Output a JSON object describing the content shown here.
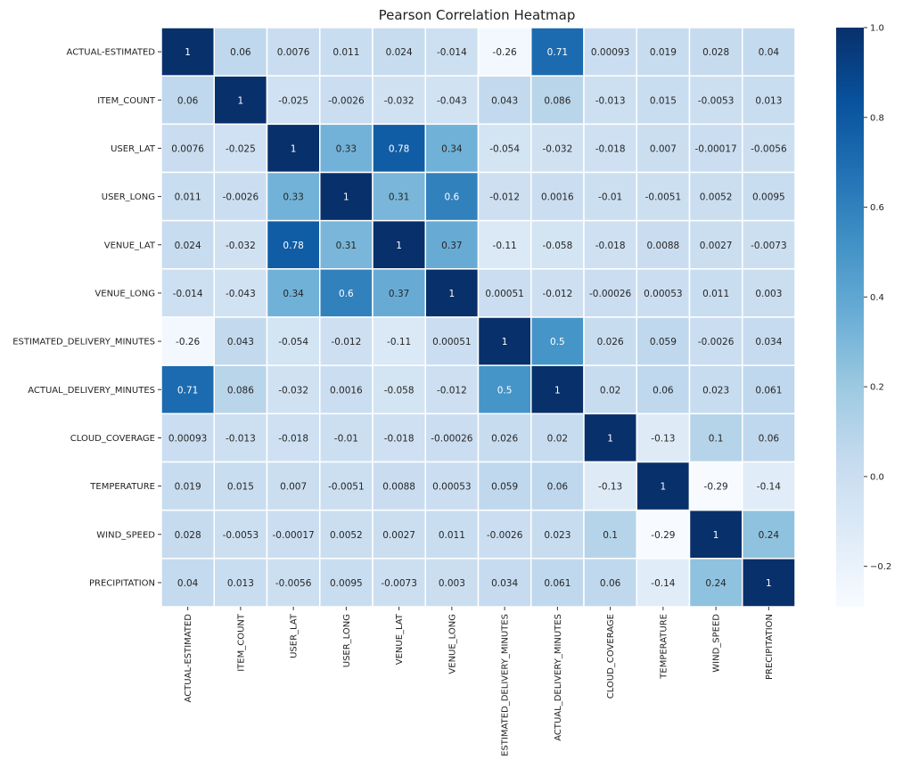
{
  "chart_data": {
    "type": "heatmap",
    "title": "Pearson Correlation Heatmap",
    "row_labels": [
      "ACTUAL-ESTIMATED",
      "ITEM_COUNT",
      "USER_LAT",
      "USER_LONG",
      "VENUE_LAT",
      "VENUE_LONG",
      "ESTIMATED_DELIVERY_MINUTES",
      "ACTUAL_DELIVERY_MINUTES",
      "CLOUD_COVERAGE",
      "TEMPERATURE",
      "WIND_SPEED",
      "PRECIPITATION"
    ],
    "col_labels": [
      "ACTUAL-ESTIMATED",
      "ITEM_COUNT",
      "USER_LAT",
      "USER_LONG",
      "VENUE_LAT",
      "VENUE_LONG",
      "ESTIMATED_DELIVERY_MINUTES",
      "ACTUAL_DELIVERY_MINUTES",
      "CLOUD_COVERAGE",
      "TEMPERATURE",
      "WIND_SPEED",
      "PRECIPITATION"
    ],
    "cell_labels": [
      [
        "1",
        "0.06",
        "0.0076",
        "0.011",
        "0.024",
        "-0.014",
        "-0.26",
        "0.71",
        "0.00093",
        "0.019",
        "0.028",
        "0.04"
      ],
      [
        "0.06",
        "1",
        "-0.025",
        "-0.0026",
        "-0.032",
        "-0.043",
        "0.043",
        "0.086",
        "-0.013",
        "0.015",
        "-0.0053",
        "0.013"
      ],
      [
        "0.0076",
        "-0.025",
        "1",
        "0.33",
        "0.78",
        "0.34",
        "-0.054",
        "-0.032",
        "-0.018",
        "0.007",
        "-0.00017",
        "-0.0056"
      ],
      [
        "0.011",
        "-0.0026",
        "0.33",
        "1",
        "0.31",
        "0.6",
        "-0.012",
        "0.0016",
        "-0.01",
        "-0.0051",
        "0.0052",
        "0.0095"
      ],
      [
        "0.024",
        "-0.032",
        "0.78",
        "0.31",
        "1",
        "0.37",
        "-0.11",
        "-0.058",
        "-0.018",
        "0.0088",
        "0.0027",
        "-0.0073"
      ],
      [
        "-0.014",
        "-0.043",
        "0.34",
        "0.6",
        "0.37",
        "1",
        "0.00051",
        "-0.012",
        "-0.00026",
        "0.00053",
        "0.011",
        "0.003"
      ],
      [
        "-0.26",
        "0.043",
        "-0.054",
        "-0.012",
        "-0.11",
        "0.00051",
        "1",
        "0.5",
        "0.026",
        "0.059",
        "-0.0026",
        "0.034"
      ],
      [
        "0.71",
        "0.086",
        "-0.032",
        "0.0016",
        "-0.058",
        "-0.012",
        "0.5",
        "1",
        "0.02",
        "0.06",
        "0.023",
        "0.061"
      ],
      [
        "0.00093",
        "-0.013",
        "-0.018",
        "-0.01",
        "-0.018",
        "-0.00026",
        "0.026",
        "0.02",
        "1",
        "-0.13",
        "0.1",
        "0.06"
      ],
      [
        "0.019",
        "0.015",
        "0.007",
        "-0.0051",
        "0.0088",
        "0.00053",
        "0.059",
        "0.06",
        "-0.13",
        "1",
        "-0.29",
        "-0.14"
      ],
      [
        "0.028",
        "-0.0053",
        "-0.00017",
        "0.0052",
        "0.0027",
        "0.011",
        "-0.0026",
        "0.023",
        "0.1",
        "-0.29",
        "1",
        "0.24"
      ],
      [
        "0.04",
        "0.013",
        "-0.0056",
        "0.0095",
        "-0.0073",
        "0.003",
        "0.034",
        "0.061",
        "0.06",
        "-0.14",
        "0.24",
        "1"
      ]
    ],
    "colorbar": {
      "range": [
        -0.29,
        1.0
      ],
      "ticks": [
        1.0,
        0.8,
        0.6,
        0.4,
        0.2,
        0.0,
        -0.2
      ],
      "tick_labels": [
        "1.0",
        "0.8",
        "0.6",
        "0.4",
        "0.2",
        "0.0",
        "−0.2"
      ]
    },
    "colormap": [
      "#f7fbff",
      "#deebf7",
      "#c6dbef",
      "#9ecae1",
      "#6baed6",
      "#4292c6",
      "#2171b5",
      "#08519c",
      "#08306b"
    ],
    "grid_line_color": "#ffffff"
  }
}
